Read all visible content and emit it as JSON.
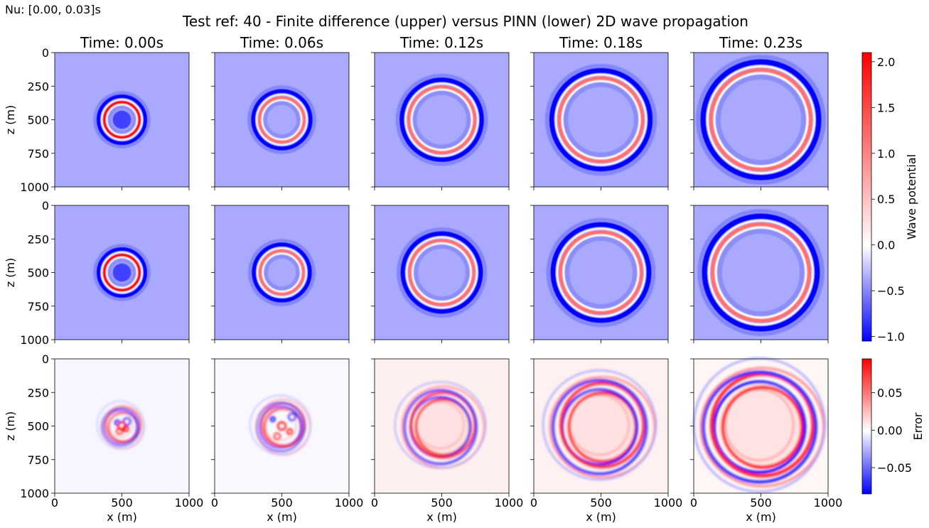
{
  "corner_text": "Nu: [0.00, 0.03]s",
  "suptitle": "Test ref: 40 - Finite difference (upper) versus PINN (lower) 2D wave propagation",
  "chart_data": {
    "type": "heatmap",
    "layout": "3 rows x 5 columns of image panels",
    "column_titles": [
      "Time: 0.00s",
      "Time: 0.06s",
      "Time: 0.12s",
      "Time: 0.18s",
      "Time: 0.23s"
    ],
    "times_s": [
      0.0,
      0.06,
      0.12,
      0.18,
      0.23
    ],
    "rows": [
      "Finite difference (upper)",
      "PINN (lower)",
      "Error"
    ],
    "xlabel": "x (m)",
    "ylabel": "z (m)",
    "xlim": [
      0,
      1000
    ],
    "ylim": [
      1000,
      0
    ],
    "xticks": [
      0,
      500,
      1000
    ],
    "yticks": [
      0,
      250,
      500,
      750,
      1000
    ],
    "source_center_m": [
      500,
      500
    ],
    "wavefront_radius_m": [
      130,
      165,
      245,
      310,
      370
    ],
    "colorbars": [
      {
        "label": "Wave potential",
        "cmap": "bwr",
        "range": [
          -1.05,
          2.1
        ],
        "ticks": [
          2.0,
          1.5,
          1.0,
          0.5,
          0.0,
          -0.5,
          -1.0
        ],
        "tick_labels": [
          "2.0",
          "1.5",
          "1.0",
          "0.5",
          "0.0",
          "−0.5",
          "−1.0"
        ]
      },
      {
        "label": "Error",
        "cmap": "bwr",
        "range": [
          -0.085,
          0.095
        ],
        "ticks": [
          0.05,
          0.0,
          -0.05
        ],
        "tick_labels": [
          "0.05",
          "0.00",
          "−0.05"
        ]
      }
    ],
    "colors": {
      "background_wave": "#a9aafe",
      "positive": "#ff0000",
      "negative": "#0000ff",
      "zero_error": "#ffffff"
    }
  }
}
